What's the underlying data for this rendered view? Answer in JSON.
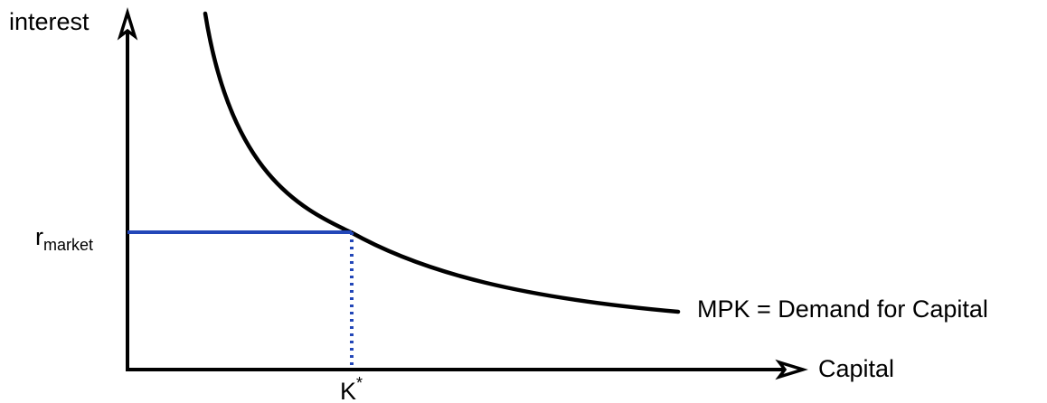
{
  "y_axis_label": "interest",
  "x_axis_label": "Capital",
  "rate_label": {
    "base": "r",
    "subscript": "market"
  },
  "capital_label": {
    "base": "K",
    "superscript": "*"
  },
  "curve_label": "MPK = Demand for Capital",
  "colors": {
    "axes": "#000000",
    "curve": "#000000",
    "rate_line": "#2347b8",
    "capital_guide": "#2347b8"
  }
}
